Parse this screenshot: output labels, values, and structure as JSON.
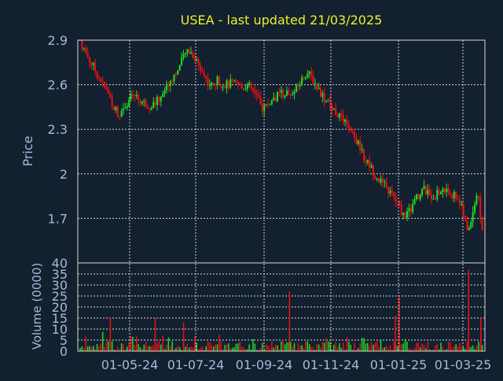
{
  "chart_data": [
    {
      "type": "candlestick",
      "title": "USEA - last updated 21/03/2025",
      "ylabel": "Price",
      "ylim": [
        1.4,
        2.9
      ],
      "yticks": [
        "2.9",
        "2.6",
        "2.3",
        "2",
        "1.7"
      ],
      "xticks": [
        "01-05-24",
        "01-07-24",
        "01-09-24",
        "01-11-24",
        "01-01-25",
        "01-03-25"
      ],
      "grid": true,
      "colors": {
        "up": "#22dd22",
        "down": "#ee1111",
        "title": "#f0f028",
        "axis_text": "#a8b8d8",
        "grid": "#d8d8d8",
        "background": "#122030"
      },
      "close_series": [
        2.9,
        2.82,
        2.76,
        2.7,
        2.64,
        2.58,
        2.52,
        2.44,
        2.4,
        2.46,
        2.5,
        2.53,
        2.5,
        2.48,
        2.46,
        2.47,
        2.5,
        2.56,
        2.61,
        2.66,
        2.7,
        2.78,
        2.84,
        2.8,
        2.74,
        2.68,
        2.62,
        2.59,
        2.63,
        2.6,
        2.6,
        2.61,
        2.6,
        2.58,
        2.6,
        2.57,
        2.52,
        2.44,
        2.46,
        2.49,
        2.52,
        2.54,
        2.55,
        2.53,
        2.57,
        2.62,
        2.68,
        2.66,
        2.6,
        2.55,
        2.5,
        2.46,
        2.42,
        2.38,
        2.34,
        2.28,
        2.24,
        2.18,
        2.1,
        2.06,
        2.0,
        1.96,
        1.92,
        1.88,
        1.84,
        1.78,
        1.72,
        1.74,
        1.8,
        1.86,
        1.9,
        1.86,
        1.85,
        1.87,
        1.89,
        1.88,
        1.86,
        1.84,
        1.75,
        1.6,
        1.74,
        1.88,
        1.62
      ]
    },
    {
      "type": "bar",
      "ylabel": "Volume (0000)",
      "ylim": [
        0,
        40
      ],
      "yticks": [
        "40",
        "35",
        "30",
        "25",
        "20",
        "15",
        "10",
        "5",
        "0"
      ],
      "grid": true,
      "spikes": [
        [
          0.08,
          15
        ],
        [
          0.19,
          15
        ],
        [
          0.26,
          13
        ],
        [
          0.52,
          27
        ],
        [
          0.79,
          25
        ],
        [
          0.78,
          16
        ],
        [
          0.96,
          37
        ],
        [
          0.99,
          15
        ]
      ]
    }
  ]
}
